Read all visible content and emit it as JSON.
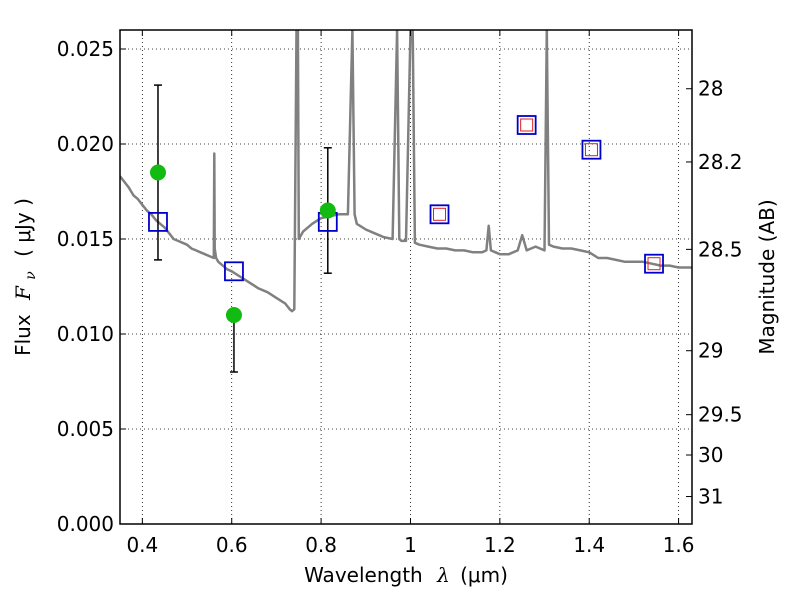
{
  "chart_data": {
    "type": "scatter",
    "title": "",
    "xlabel": "Wavelength",
    "xlabel_symbol": "λ",
    "xlabel_unit": "(μm)",
    "ylabel": "Flux",
    "ylabel_symbol": "F",
    "ylabel_subscript": "ν",
    "ylabel_unit": "( μJy )",
    "y2label": "Magnitude (AB)",
    "xlim": [
      0.35,
      1.63
    ],
    "ylim": [
      0.0,
      0.026
    ],
    "grid": true,
    "grid_style": "dotted",
    "x_ticks": [
      {
        "value": 0.4,
        "label": "0.4"
      },
      {
        "value": 0.6,
        "label": "0.6"
      },
      {
        "value": 0.8,
        "label": "0.8"
      },
      {
        "value": 1.0,
        "label": "1"
      },
      {
        "value": 1.2,
        "label": "1.2"
      },
      {
        "value": 1.4,
        "label": "1.4"
      },
      {
        "value": 1.6,
        "label": "1.6"
      }
    ],
    "y_ticks": [
      {
        "value": 0.0,
        "label": "0.000"
      },
      {
        "value": 0.005,
        "label": "0.005"
      },
      {
        "value": 0.01,
        "label": "0.010"
      },
      {
        "value": 0.015,
        "label": "0.015"
      },
      {
        "value": 0.02,
        "label": "0.020"
      },
      {
        "value": 0.025,
        "label": "0.025"
      }
    ],
    "y2_ticks": [
      {
        "value": 28,
        "label": "28"
      },
      {
        "value": 28.2,
        "label": "28.2"
      },
      {
        "value": 28.5,
        "label": "28.5"
      },
      {
        "value": 29,
        "label": "29"
      },
      {
        "value": 29.5,
        "label": "29.5"
      },
      {
        "value": 30,
        "label": "30"
      },
      {
        "value": 31,
        "label": "31"
      }
    ],
    "colors": {
      "spectrum": "#808080",
      "model_box": "#0000cc",
      "observed_box": "#dd2222",
      "detection": "#11bb11",
      "errorbar": "#000000"
    },
    "series": [
      {
        "kind": "spectrum",
        "x": [
          0.35,
          0.36,
          0.37,
          0.38,
          0.39,
          0.4,
          0.41,
          0.42,
          0.43,
          0.44,
          0.45,
          0.46,
          0.47,
          0.48,
          0.49,
          0.5,
          0.51,
          0.52,
          0.53,
          0.54,
          0.55,
          0.56,
          0.561,
          0.562,
          0.565,
          0.57,
          0.58,
          0.59,
          0.6,
          0.62,
          0.64,
          0.66,
          0.68,
          0.7,
          0.72,
          0.73,
          0.735,
          0.74,
          0.745,
          0.748,
          0.75,
          0.76,
          0.78,
          0.8,
          0.82,
          0.84,
          0.86,
          0.87,
          0.875,
          0.88,
          0.9,
          0.92,
          0.94,
          0.96,
          0.97,
          0.975,
          0.98,
          0.99,
          1.0,
          1.005,
          1.01,
          1.02,
          1.04,
          1.06,
          1.08,
          1.1,
          1.12,
          1.14,
          1.16,
          1.17,
          1.175,
          1.18,
          1.19,
          1.2,
          1.22,
          1.24,
          1.25,
          1.26,
          1.27,
          1.28,
          1.3,
          1.305,
          1.31,
          1.32,
          1.34,
          1.36,
          1.38,
          1.4,
          1.42,
          1.44,
          1.46,
          1.48,
          1.5,
          1.52,
          1.54,
          1.56,
          1.58,
          1.6,
          1.63
        ],
        "y": [
          0.0183,
          0.018,
          0.0177,
          0.0173,
          0.0171,
          0.0168,
          0.0165,
          0.0163,
          0.016,
          0.0158,
          0.0156,
          0.0153,
          0.015,
          0.0149,
          0.0148,
          0.0147,
          0.0145,
          0.0144,
          0.0143,
          0.0142,
          0.0141,
          0.014,
          0.0195,
          0.0145,
          0.014,
          0.0138,
          0.0136,
          0.0134,
          0.0133,
          0.013,
          0.0127,
          0.0124,
          0.0122,
          0.0119,
          0.0116,
          0.0113,
          0.0112,
          0.0113,
          0.026,
          0.026,
          0.015,
          0.0154,
          0.0158,
          0.0161,
          0.0162,
          0.0163,
          0.0163,
          0.026,
          0.0163,
          0.0158,
          0.0155,
          0.0153,
          0.0151,
          0.015,
          0.026,
          0.015,
          0.0149,
          0.0149,
          0.026,
          0.026,
          0.0148,
          0.0147,
          0.0146,
          0.0145,
          0.0145,
          0.0144,
          0.0144,
          0.0143,
          0.0143,
          0.0144,
          0.0157,
          0.0144,
          0.0143,
          0.0142,
          0.0142,
          0.0144,
          0.0152,
          0.0144,
          0.0145,
          0.0146,
          0.0144,
          0.026,
          0.0147,
          0.0146,
          0.0145,
          0.0145,
          0.0144,
          0.0143,
          0.014,
          0.014,
          0.0139,
          0.0138,
          0.0138,
          0.0138,
          0.0137,
          0.0136,
          0.0136,
          0.0135,
          0.0135
        ]
      },
      {
        "kind": "model_box",
        "x": [
          0.435,
          0.605,
          0.815,
          1.065,
          1.26,
          1.405,
          1.545
        ],
        "y": [
          0.0159,
          0.0133,
          0.0159,
          0.0163,
          0.021,
          0.0197,
          0.0137
        ]
      },
      {
        "kind": "observed_box",
        "x": [
          1.065,
          1.26,
          1.405,
          1.545
        ],
        "y": [
          0.0163,
          0.021,
          0.0197,
          0.0137
        ]
      },
      {
        "kind": "detection",
        "x": [
          0.435,
          0.605,
          0.815
        ],
        "y": [
          0.0185,
          0.011,
          0.0165
        ],
        "yerr_low": [
          0.0139,
          0.008,
          0.0132
        ],
        "yerr_high": [
          0.0231,
          0.011,
          0.0198
        ]
      }
    ]
  }
}
